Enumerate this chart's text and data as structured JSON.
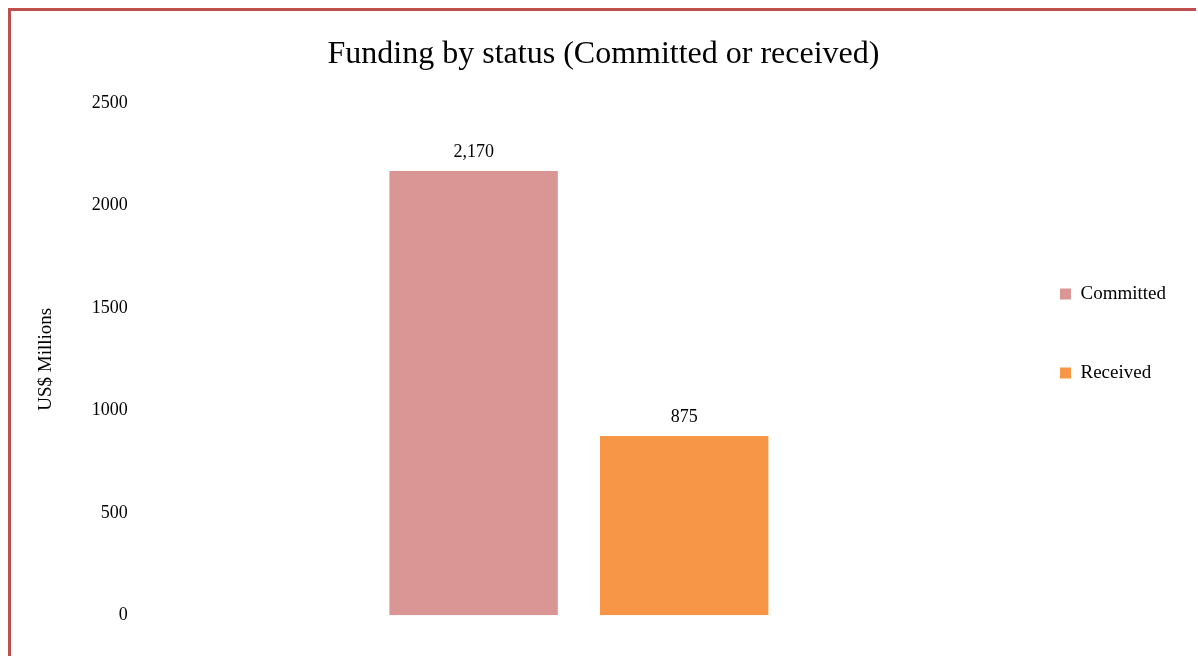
{
  "chart_data": {
    "type": "bar",
    "title": "Funding by status (Committed or received)",
    "ylabel": "US$ Millions",
    "categories": [
      null
    ],
    "series": [
      {
        "name": "Committed",
        "color": "#d99694",
        "values": [
          2170
        ],
        "value_labels": [
          "2,170"
        ]
      },
      {
        "name": "Received",
        "color": "#f79646",
        "values": [
          875
        ],
        "value_labels": [
          "875"
        ]
      }
    ],
    "ylim": [
      0,
      2500
    ],
    "yticks": [
      0,
      500,
      1000,
      1500,
      2000,
      2500
    ],
    "grid": false,
    "legend": "right"
  }
}
